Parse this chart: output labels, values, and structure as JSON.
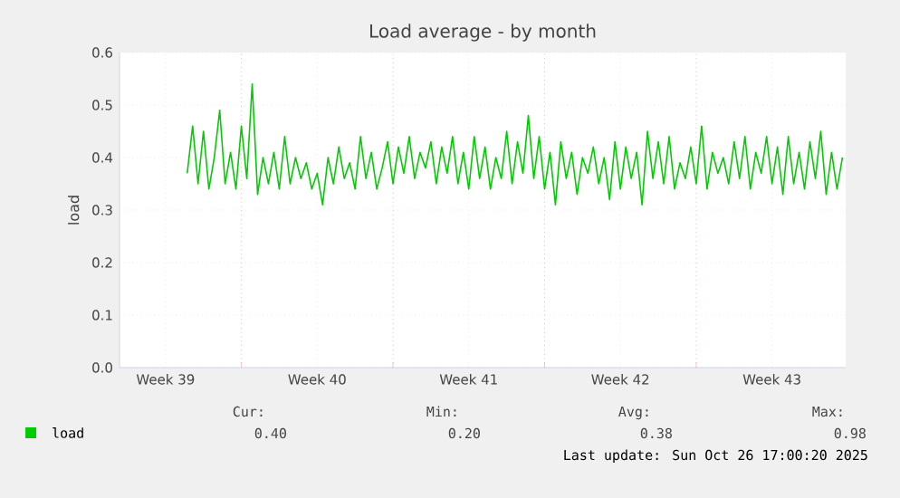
{
  "chart_data": {
    "type": "line",
    "title": "Load average - by month",
    "ylabel": "load",
    "categories": [
      null,
      null,
      null,
      null,
      null,
      null,
      null,
      null,
      "Week 39",
      null,
      null,
      null,
      null,
      null,
      null,
      null,
      null,
      null,
      null,
      null,
      null,
      null,
      null,
      null,
      null,
      null,
      null,
      null,
      null,
      null,
      null,
      null,
      null,
      null,
      null,
      null,
      "Week 40",
      null,
      null,
      null,
      null,
      null,
      null,
      null,
      null,
      null,
      null,
      null,
      null,
      null,
      null,
      null,
      null,
      null,
      null,
      null,
      null,
      null,
      null,
      null,
      null,
      null,
      null,
      null,
      "Week 41",
      null,
      null,
      null,
      null,
      null,
      null,
      null,
      null,
      null,
      null,
      null,
      null,
      null,
      null,
      null,
      null,
      null,
      null,
      null,
      null,
      null,
      null,
      null,
      null,
      null,
      null,
      null,
      "Week 42",
      null,
      null,
      null,
      null,
      null,
      null,
      null,
      null,
      null,
      null,
      null,
      null,
      null,
      null,
      null,
      null,
      null,
      null,
      null,
      null,
      null,
      null,
      null,
      null,
      null,
      null,
      null,
      "Week 43",
      null,
      null,
      null,
      null,
      null,
      null,
      null,
      null,
      null,
      null,
      null,
      null,
      null
    ],
    "series": [
      {
        "name": "load",
        "color": "#00cc00",
        "values": [
          null,
          null,
          null,
          null,
          null,
          null,
          null,
          null,
          null,
          null,
          null,
          null,
          0.37,
          0.46,
          0.35,
          0.45,
          0.34,
          0.4,
          0.49,
          0.35,
          0.41,
          0.34,
          0.46,
          0.36,
          0.54,
          0.33,
          0.4,
          0.35,
          0.41,
          0.34,
          0.44,
          0.35,
          0.4,
          0.36,
          0.39,
          0.34,
          0.37,
          0.31,
          0.4,
          0.35,
          0.42,
          0.36,
          0.39,
          0.34,
          0.44,
          0.36,
          0.41,
          0.34,
          0.38,
          0.43,
          0.35,
          0.42,
          0.37,
          0.44,
          0.36,
          0.41,
          0.38,
          0.43,
          0.35,
          0.42,
          0.37,
          0.44,
          0.35,
          0.41,
          0.34,
          0.44,
          0.36,
          0.42,
          0.34,
          0.4,
          0.36,
          0.45,
          0.35,
          0.43,
          0.37,
          0.48,
          0.36,
          0.44,
          0.34,
          0.41,
          0.31,
          0.43,
          0.36,
          0.41,
          0.33,
          0.4,
          0.37,
          0.42,
          0.35,
          0.4,
          0.32,
          0.43,
          0.34,
          0.42,
          0.36,
          0.41,
          0.31,
          0.45,
          0.36,
          0.43,
          0.35,
          0.44,
          0.34,
          0.39,
          0.36,
          0.42,
          0.35,
          0.46,
          0.34,
          0.41,
          0.37,
          0.4,
          0.35,
          0.43,
          0.36,
          0.44,
          0.34,
          0.41,
          0.37,
          0.44,
          0.35,
          0.42,
          0.33,
          0.44,
          0.35,
          0.41,
          0.34,
          0.43,
          0.36,
          0.45,
          0.33,
          0.41,
          0.34,
          0.4
        ]
      }
    ],
    "ylim": [
      0,
      0.6
    ],
    "yticks": [
      {
        "value": 0,
        "label": "0.0"
      },
      {
        "value": 0.1,
        "label": "0.1"
      },
      {
        "value": 0.2,
        "label": "0.2"
      },
      {
        "value": 0.3,
        "label": "0.3"
      },
      {
        "value": 0.4,
        "label": "0.4"
      },
      {
        "value": 0.5,
        "label": "0.5"
      },
      {
        "value": 0.6,
        "label": "0.6"
      }
    ],
    "grid": true,
    "legend": "bottom",
    "annotations": [
      "Cur:",
      "Min:",
      "Avg:",
      "Max:",
      "0.40",
      "0.20",
      "0.38",
      "0.98",
      "Last update: Sun Oct 26 17:00:20 2025"
    ]
  }
}
